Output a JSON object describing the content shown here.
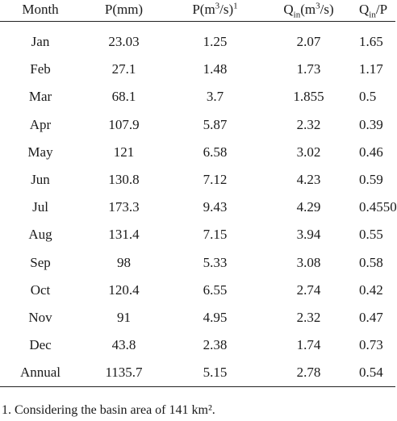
{
  "table": {
    "headers": {
      "month": "Month",
      "p_mm": "P(mm)",
      "p_m3s": {
        "base": "P(m",
        "sup1": "3",
        "mid": "/s)",
        "sup2": "1"
      },
      "q_in": {
        "base": "Q",
        "sub": "in",
        "mid": "(m",
        "sup": "3",
        "end": "/s)"
      },
      "ratio": {
        "base": "Q",
        "sub": "in",
        "end": "/P"
      }
    },
    "rows": [
      {
        "month": "Jan",
        "p_mm": "23.03",
        "p_m3s": "1.25",
        "q_in": "2.07",
        "ratio": "1.65"
      },
      {
        "month": "Feb",
        "p_mm": "27.1",
        "p_m3s": "1.48",
        "q_in": "1.73",
        "ratio": "1.17"
      },
      {
        "month": "Mar",
        "p_mm": "68.1",
        "p_m3s": "3.7",
        "q_in": "1.855",
        "ratio": "0.5"
      },
      {
        "month": "Apr",
        "p_mm": "107.9",
        "p_m3s": "5.87",
        "q_in": "2.32",
        "ratio": "0.39"
      },
      {
        "month": "May",
        "p_mm": "121",
        "p_m3s": "6.58",
        "q_in": "3.02",
        "ratio": "0.46"
      },
      {
        "month": "Jun",
        "p_mm": "130.8",
        "p_m3s": "7.12",
        "q_in": "4.23",
        "ratio": "0.59"
      },
      {
        "month": "Jul",
        "p_mm": "173.3",
        "p_m3s": "9.43",
        "q_in": "4.29",
        "ratio": "0.4550"
      },
      {
        "month": "Aug",
        "p_mm": "131.4",
        "p_m3s": "7.15",
        "q_in": "3.94",
        "ratio": "0.55"
      },
      {
        "month": "Sep",
        "p_mm": "98",
        "p_m3s": "5.33",
        "q_in": "3.08",
        "ratio": "0.58"
      },
      {
        "month": "Oct",
        "p_mm": "120.4",
        "p_m3s": "6.55",
        "q_in": "2.74",
        "ratio": "0.42"
      },
      {
        "month": "Nov",
        "p_mm": "91",
        "p_m3s": "4.95",
        "q_in": "2.32",
        "ratio": "0.47"
      },
      {
        "month": "Dec",
        "p_mm": "43.8",
        "p_m3s": "2.38",
        "q_in": "1.74",
        "ratio": "0.73"
      },
      {
        "month": "Annual",
        "p_mm": "1135.7",
        "p_m3s": "5.15",
        "q_in": "2.78",
        "ratio": "0.54"
      }
    ]
  },
  "footnote": "1. Considering the basin area of 141 km²."
}
